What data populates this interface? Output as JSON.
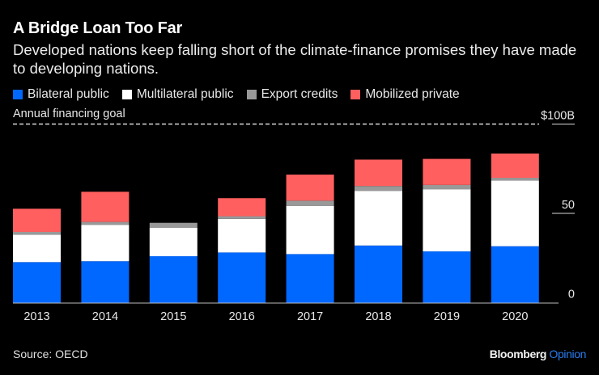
{
  "chart_data": {
    "type": "bar",
    "stacked": true,
    "title": "A Bridge Loan Too Far",
    "subtitle": "Developed nations keep falling short of the climate-finance promises they have made to developing nations.",
    "xlabel": "",
    "ylabel": "",
    "ylim": [
      0,
      100
    ],
    "y_ticks": [
      {
        "value": 0,
        "label": "0"
      },
      {
        "value": 50,
        "label": "50"
      },
      {
        "value": 100,
        "label": "$100B"
      }
    ],
    "y_axis_position": "right",
    "legend_position": "top-left",
    "grid": false,
    "categories": [
      "2013",
      "2014",
      "2015",
      "2016",
      "2017",
      "2018",
      "2019",
      "2020"
    ],
    "series": [
      {
        "name": "Bilateral public",
        "color": "#0068ff",
        "values": [
          22.7,
          23.2,
          26.0,
          28.1,
          27.2,
          32.0,
          28.7,
          31.6
        ]
      },
      {
        "name": "Multilateral public",
        "color": "#ffffff",
        "values": [
          15.4,
          20.4,
          16.0,
          18.8,
          27.0,
          30.6,
          34.8,
          36.8
        ]
      },
      {
        "name": "Export credits",
        "color": "#999999",
        "values": [
          1.5,
          1.6,
          2.7,
          1.5,
          2.9,
          2.7,
          2.4,
          1.5
        ]
      },
      {
        "name": "Mobilized private",
        "color": "#ff5f5f",
        "values": [
          13.0,
          16.9,
          0,
          10.1,
          14.6,
          14.8,
          14.6,
          13.6
        ]
      }
    ],
    "annotations": [
      {
        "type": "hline",
        "value": 100,
        "style": "dashed",
        "label": "Annual financing goal"
      }
    ],
    "source": "Source: OECD"
  },
  "footer": {
    "source": "Source: OECD",
    "brand_main": "Bloomberg",
    "brand_sub": "Opinion"
  }
}
